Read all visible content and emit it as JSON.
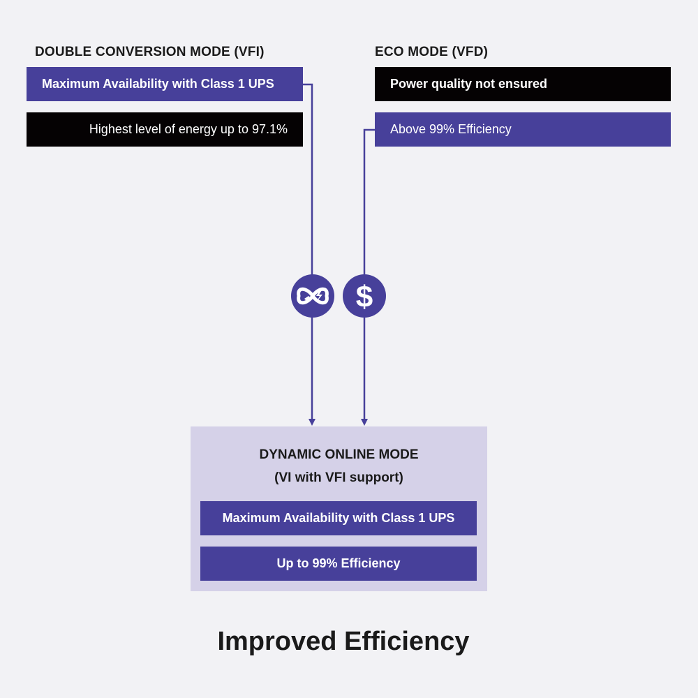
{
  "left": {
    "title": "DOUBLE CONVERSION MODE (VFI)",
    "box1": "Maximum Availability with Class 1 UPS",
    "box2": "Highest level of energy up to 97.1%"
  },
  "right": {
    "title": "ECO MODE (VFD)",
    "box1": "Power quality not ensured",
    "box2": "Above 99% Efficiency"
  },
  "icons": {
    "left": "infinity-plug-lightning-icon",
    "right": "dollar-icon"
  },
  "result": {
    "title": "DYNAMIC ONLINE MODE",
    "subtitle": "(VI with VFI support)",
    "box1": "Maximum Availability with Class 1 UPS",
    "box2": "Up to 99% Efficiency"
  },
  "footer": "Improved Efficiency",
  "colors": {
    "purple": "#47409a",
    "black": "#050203",
    "background": "#f2f2f5",
    "panel": "#d5d1e8"
  }
}
